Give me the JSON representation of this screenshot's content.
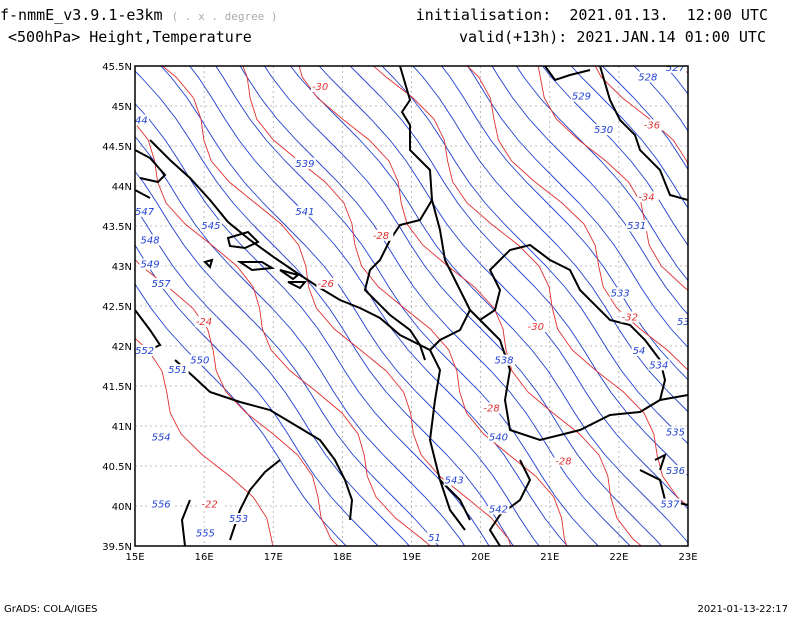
{
  "header": {
    "model": "f-nmmE_v3.9.1-e3km",
    "grid_note": "( . x . degree )",
    "level": "<500hPa> Height,Temperature",
    "init_label": "initialisation:",
    "init_value": "2021.01.13.  12:00 UTC",
    "valid_label": "valid(+13h):",
    "valid_value": "2021.JAN.14 01:00 UTC"
  },
  "footer": {
    "left": "GrADS: COLA/IGES",
    "right": "2021-01-13-22:17"
  },
  "map": {
    "lon_ticks": [
      "15E",
      "16E",
      "17E",
      "18E",
      "19E",
      "20E",
      "21E",
      "22E",
      "23E"
    ],
    "lat_ticks": [
      "45.5N",
      "45N",
      "44.5N",
      "44N",
      "43.5N",
      "43N",
      "42.5N",
      "42N",
      "41.5N",
      "41N",
      "40.5N",
      "40N",
      "39.5N"
    ],
    "colors": {
      "height": "#1f3fd0",
      "temperature": "#e03030",
      "coast": "#000000",
      "grid": "#aaaaaa"
    },
    "height_labels": [
      "527",
      "528",
      "529",
      "530",
      "531",
      "533",
      "534",
      "535",
      "536",
      "537",
      "538",
      "539",
      "540",
      "541",
      "542",
      "543",
      "545",
      "547",
      "548",
      "549",
      "550",
      "551",
      "552",
      "553",
      "554",
      "555",
      "556",
      "557",
      "44",
      "53",
      "54",
      "51"
    ],
    "temperature_labels": [
      "-30",
      "-36",
      "-34",
      "-28",
      "-26",
      "-24",
      "-30",
      "-32",
      "-28",
      "-28",
      "-22"
    ]
  }
}
